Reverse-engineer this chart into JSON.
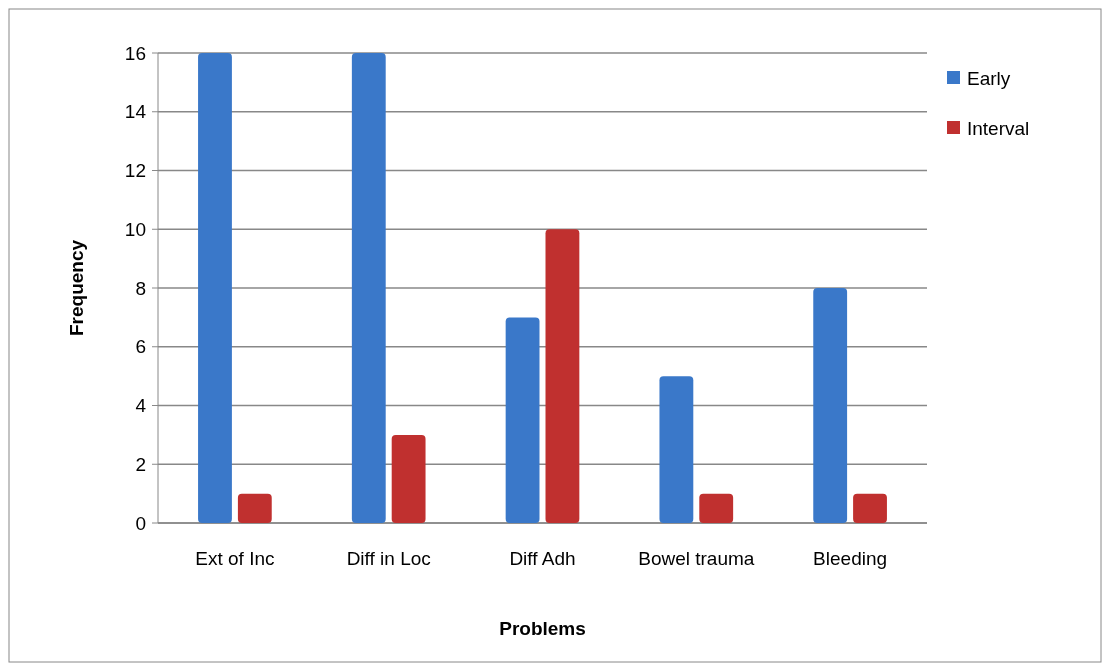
{
  "chart_data": {
    "type": "bar",
    "xlabel": "Problems",
    "ylabel": "Frequency",
    "categories": [
      "Ext of Inc",
      "Diff in Loc",
      "Diff Adh",
      "Bowel trauma",
      "Bleeding"
    ],
    "series": [
      {
        "name": "Early",
        "color": "#3a78c9",
        "values": [
          16,
          16,
          7,
          5,
          8
        ]
      },
      {
        "name": "Interval",
        "color": "#c0302f",
        "values": [
          1,
          3,
          10,
          1,
          1
        ]
      }
    ],
    "ylim": [
      0,
      16
    ],
    "yticks": [
      0,
      2,
      4,
      6,
      8,
      10,
      12,
      14,
      16
    ],
    "grid": "y",
    "legend": "right"
  }
}
